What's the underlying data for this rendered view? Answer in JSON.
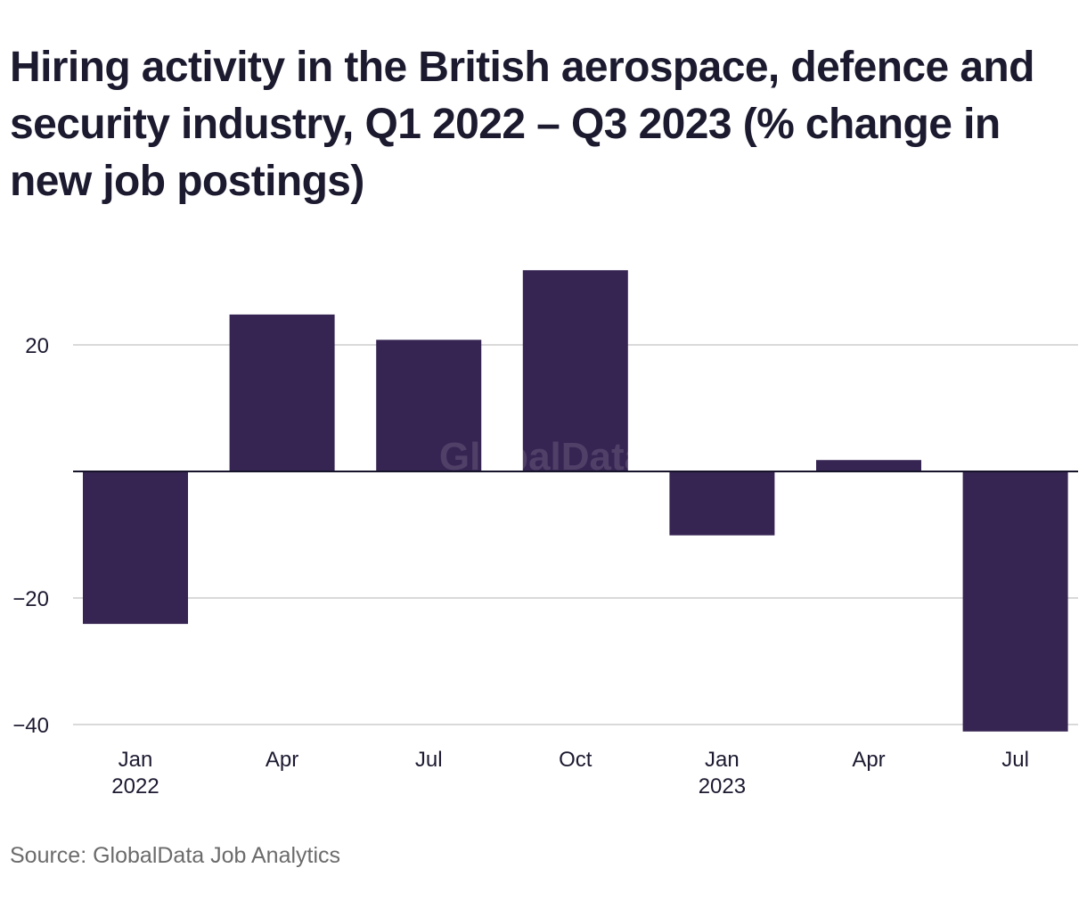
{
  "title": "Hiring activity in the British aerospace, defence and security industry, Q1 2022 – Q3 2023 (% change in new job postings)",
  "source": "Source: GlobalData Job Analytics",
  "watermark": "GlobalData",
  "colors": {
    "bar": "#362452",
    "gridline": "#d9d9d9",
    "zero_line": "#16142a",
    "text": "#1c1a30",
    "source_text": "#6b6b6b"
  },
  "chart_data": {
    "type": "bar",
    "title": "Hiring activity in the British aerospace, defence and security industry, Q1 2022 – Q3 2023 (% change in new job postings)",
    "xlabel": "",
    "ylabel": "% change in new job postings",
    "categories": [
      "Jan 2022",
      "Apr 2022",
      "Jul 2022",
      "Oct 2022",
      "Jan 2023",
      "Apr 2023",
      "Jul 2023"
    ],
    "x_tick_labels": [
      {
        "line1": "Jan",
        "line2": "2022"
      },
      {
        "line1": "Apr",
        "line2": ""
      },
      {
        "line1": "Jul",
        "line2": ""
      },
      {
        "line1": "Oct",
        "line2": ""
      },
      {
        "line1": "Jan",
        "line2": "2023"
      },
      {
        "line1": "Apr",
        "line2": ""
      },
      {
        "line1": "Jul",
        "line2": ""
      }
    ],
    "values": [
      -24.1,
      24.8,
      20.8,
      31.8,
      -10.1,
      1.8,
      -41.1
    ],
    "ylim": [
      -42,
      33
    ],
    "y_ticks": [
      20,
      -20,
      -40
    ],
    "y_tick_labels": [
      "20",
      "−20",
      "−40"
    ],
    "grid": true,
    "legend": "none"
  }
}
